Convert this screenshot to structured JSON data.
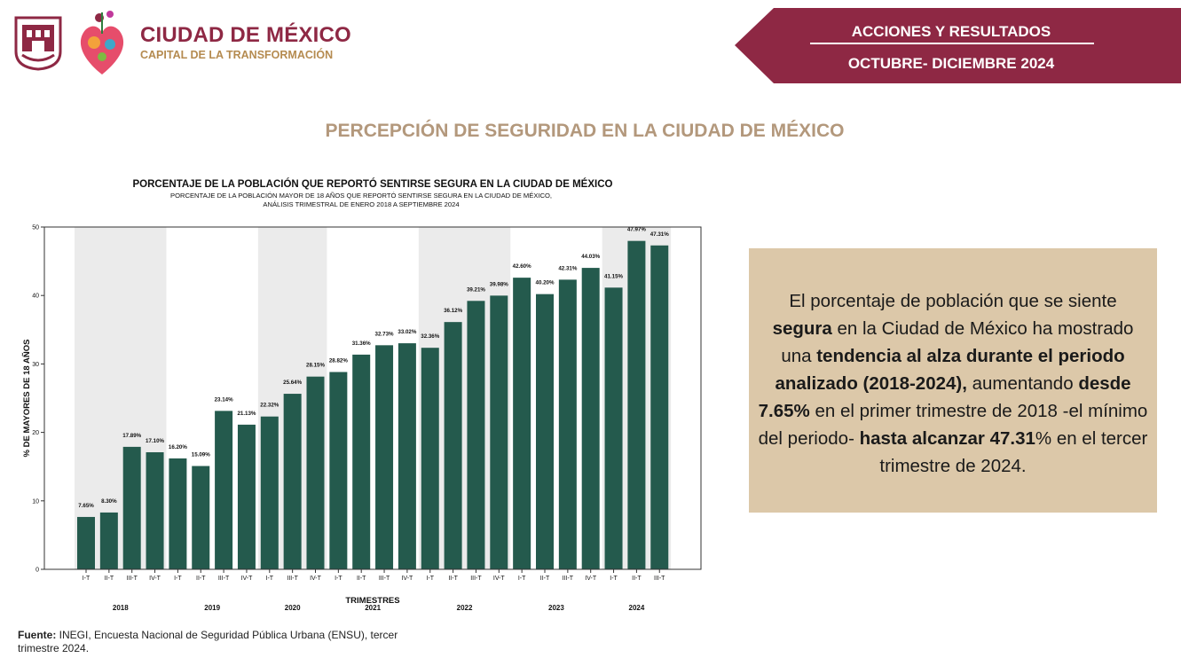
{
  "header": {
    "logo_title": "CIUDAD DE MÉXICO",
    "logo_subtitle": "CAPITAL DE LA TRANSFORMACIÓN",
    "banner_line1": "ACCIONES Y RESULTADOS",
    "banner_line2": "OCTUBRE- DICIEMBRE 2024",
    "brand_color": "#8e2844",
    "accent_color": "#b58b50"
  },
  "page_title": "PERCEPCIÓN DE SEGURIDAD EN LA CIUDAD DE MÉXICO",
  "chart_data": {
    "type": "bar",
    "title": "PORCENTAJE DE LA POBLACIÓN QUE REPORTÓ SENTIRSE SEGURA EN LA CIUDAD DE MÉXICO",
    "subtitle": "PORCENTAJE DE LA POBLACIÓN MAYOR DE 18 AÑOS QUE REPORTÓ SENTIRSE SEGURA EN LA CIUDAD DE MÉXICO,",
    "subtitle2": "ANÁLISIS TRIMESTRAL DE ENERO 2018 A SEPTIEMBRE 2024",
    "xlabel": "TRIMESTRES",
    "ylabel": "% DE MAYORES DE 18 AÑOS",
    "ylim": [
      0,
      50
    ],
    "yticks": [
      0,
      10,
      20,
      30,
      40,
      50
    ],
    "categories": [
      "I-T",
      "II-T",
      "III-T",
      "IV-T",
      "I-T",
      "II-T",
      "III-T",
      "IV-T",
      "I-T",
      "III-T",
      "IV-T",
      "I-T",
      "II-T",
      "III-T",
      "IV-T",
      "I-T",
      "II-T",
      "III-T",
      "IV-T",
      "I-T",
      "II-T",
      "III-T",
      "IV-T",
      "I-T",
      "II-T",
      "III-T"
    ],
    "values": [
      7.65,
      8.3,
      17.89,
      17.1,
      16.2,
      15.09,
      23.14,
      21.13,
      22.32,
      25.64,
      28.15,
      28.82,
      31.36,
      32.73,
      33.02,
      32.36,
      36.12,
      39.21,
      39.98,
      42.6,
      40.2,
      42.31,
      44.03,
      41.15,
      47.97,
      47.31
    ],
    "value_labels": [
      "7.65%",
      "8.30%",
      "17.89%",
      "17.10%",
      "16.20%",
      "15.09%",
      "23.14%",
      "21.13%",
      "22.32%",
      "25.64%",
      "28.15%",
      "28.82%",
      "31.36%",
      "32.73%",
      "33.02%",
      "32.36%",
      "36.12%",
      "39.21%",
      "39.98%",
      "42.60%",
      "40.20%",
      "42.31%",
      "44.03%",
      "41.15%",
      "47.97%",
      "47.31%"
    ],
    "years": [
      {
        "label": "2018",
        "start": 0,
        "end": 3,
        "shaded": true
      },
      {
        "label": "2019",
        "start": 4,
        "end": 7,
        "shaded": false
      },
      {
        "label": "2020",
        "start": 8,
        "end": 10,
        "shaded": true
      },
      {
        "label": "2021",
        "start": 11,
        "end": 14,
        "shaded": false
      },
      {
        "label": "2022",
        "start": 15,
        "end": 18,
        "shaded": true
      },
      {
        "label": "2023",
        "start": 19,
        "end": 22,
        "shaded": false
      },
      {
        "label": "2024",
        "start": 23,
        "end": 25,
        "shaded": true
      }
    ],
    "bar_color": "#245a4d",
    "shade_color": "#ebebeb",
    "grid": false,
    "legend": "none"
  },
  "summary": {
    "s1": "El porcentaje de población que se siente ",
    "b1": "segura",
    "s2": " en la Ciudad de México ha mostrado una ",
    "b2": "tendencia al alza durante el periodo analizado (2018-2024),",
    "s3": " aumentando ",
    "b3": "desde 7.65%",
    "s4": " en el primer trimestre de 2018 -el mínimo del periodo- ",
    "b4": "hasta alcanzar 47.31",
    "s5": "% en el tercer trimestre de 2024."
  },
  "source": {
    "label": "Fuente:",
    "text": " INEGI, Encuesta Nacional de Seguridad Pública Urbana (ENSU), tercer trimestre 2024."
  }
}
